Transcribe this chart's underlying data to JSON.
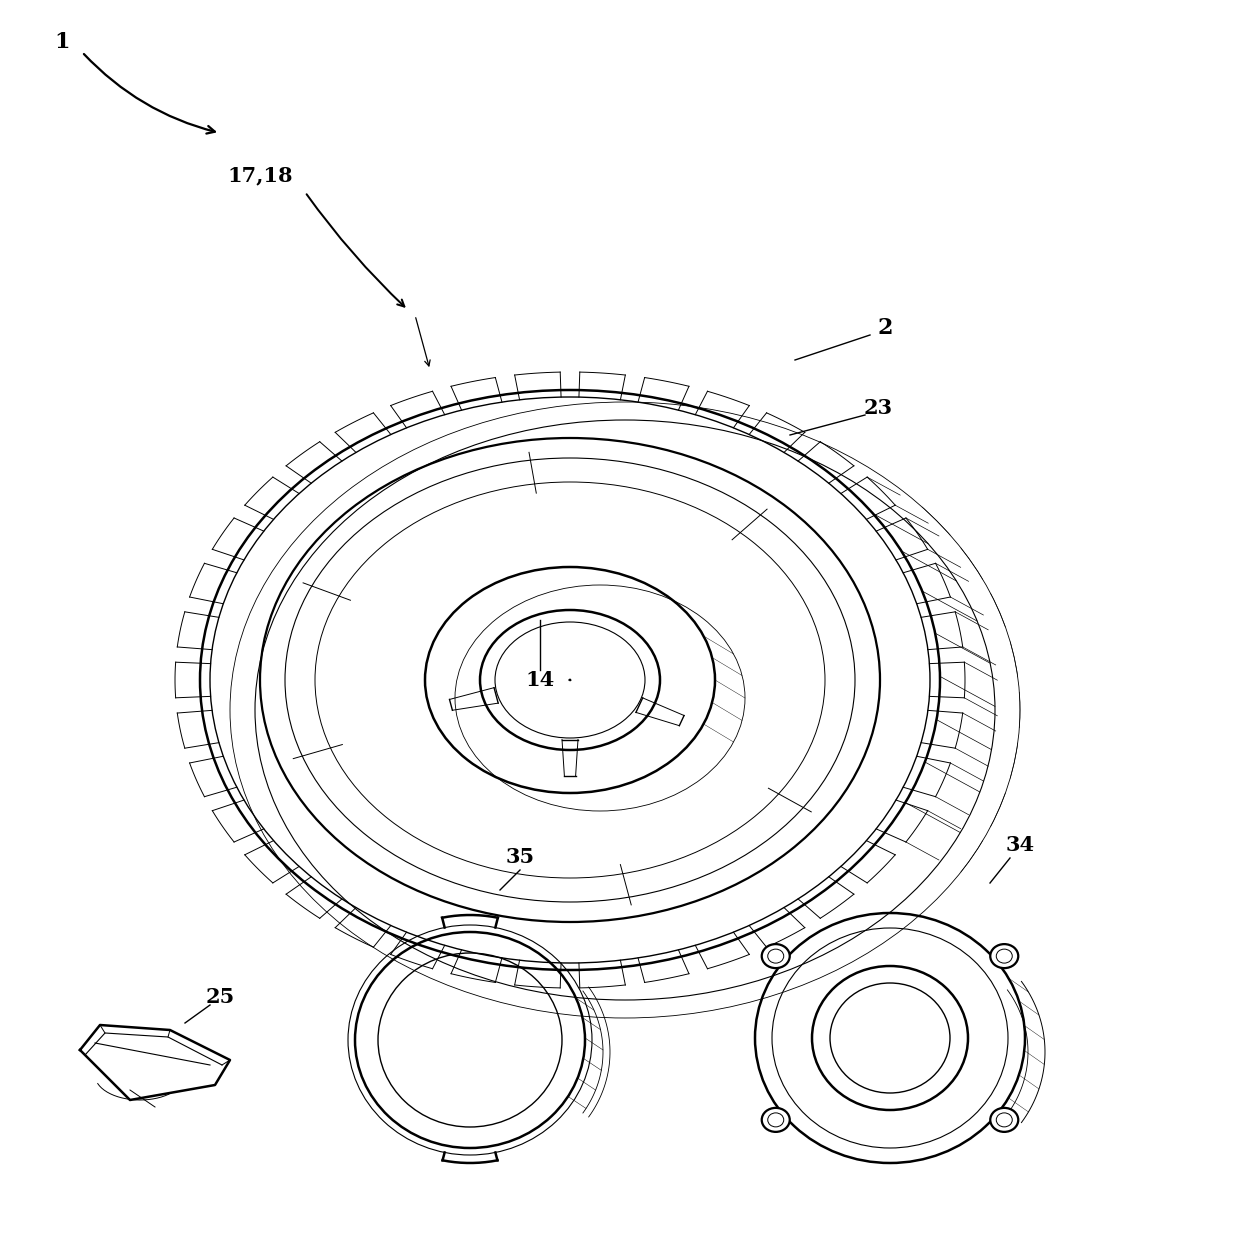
{
  "bg_color": "#ffffff",
  "line_color": "#000000",
  "fig_width": 12.4,
  "fig_height": 12.55,
  "dpi": 100,
  "font_size": 15,
  "lw_main": 1.8,
  "lw_thin": 1.0,
  "lw_xtra": 0.6
}
